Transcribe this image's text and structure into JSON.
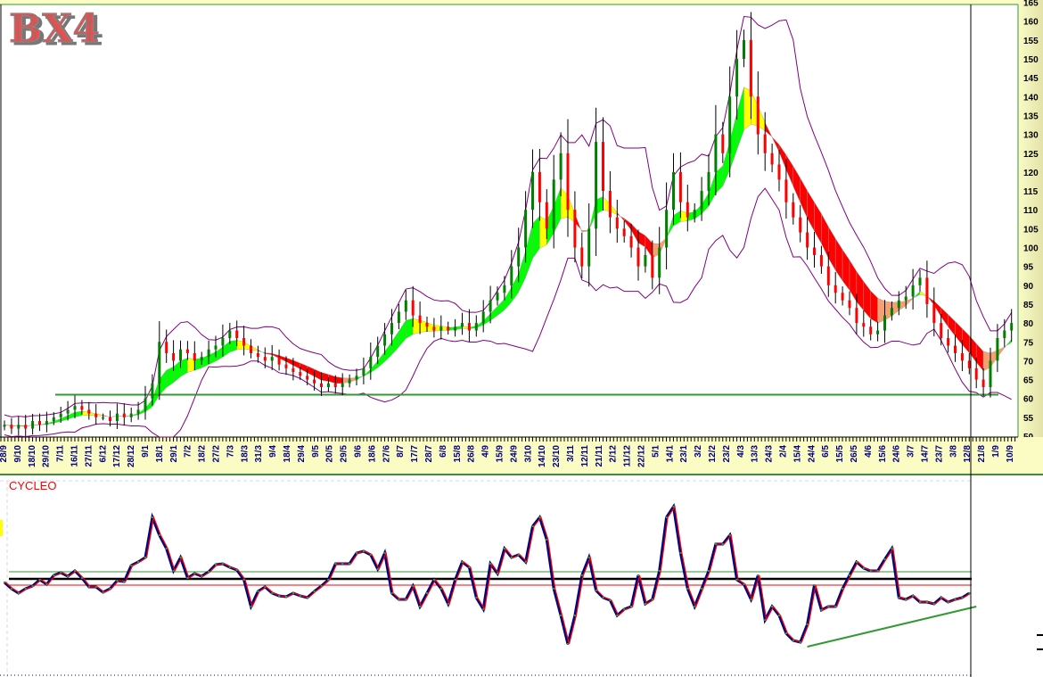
{
  "logo": {
    "text": "BX4"
  },
  "colors": {
    "up_candle": "#008000",
    "down_candle": "#ff0000",
    "wick": "#000000",
    "bollinger": "#800080",
    "ribbon_up": "#00ff00",
    "ribbon_up_slow": "#ffff00",
    "ribbon_down": "#ff0000",
    "ribbon_down_slow": "#f4a070",
    "support_line": "#339933",
    "axis_text": "#000080",
    "axis_bg": "#fbfbc4",
    "cycleo_main": "#000080",
    "cycleo_signal": "#ff0000",
    "cycleo_dots": "#339933"
  },
  "chart_data": [
    {
      "type": "candlestick",
      "title": "",
      "y_axis": {
        "position": "right",
        "ylim": [
          50,
          165
        ],
        "ticks": [
          50,
          55,
          60,
          65,
          70,
          75,
          80,
          85,
          90,
          95,
          100,
          105,
          110,
          115,
          120,
          125,
          130,
          135,
          140,
          145,
          150,
          155,
          160,
          165
        ]
      },
      "x_axis": {
        "tick_labels": [
          "28/9",
          "9/10",
          "18/10",
          "29/10",
          "7/11",
          "16/11",
          "27/11",
          "6/12",
          "17/12",
          "28/12",
          "9/1",
          "18/1",
          "29/1",
          "7/2",
          "18/2",
          "27/2",
          "7/3",
          "18/3",
          "31/3",
          "9/4",
          "18/4",
          "29/4",
          "9/5",
          "20/5",
          "29/5",
          "9/6",
          "18/6",
          "27/6",
          "8/7",
          "17/7",
          "28/7",
          "6/8",
          "15/8",
          "26/8",
          "4/9",
          "15/9",
          "24/9",
          "3/10",
          "14/10",
          "23/10",
          "3/11",
          "12/11",
          "21/11",
          "2/12",
          "11/12",
          "22/12",
          "5/1",
          "14/1",
          "23/1",
          "3/2",
          "12/2",
          "23/2",
          "4/3",
          "13/3",
          "24/3",
          "2/4",
          "15/4",
          "24/4",
          "6/5",
          "15/5",
          "26/5",
          "4/6",
          "15/6",
          "24/6",
          "3/7",
          "14/7",
          "23/7",
          "3/8",
          "12/8",
          "21/8",
          "1/9",
          "10/9"
        ]
      },
      "close": [
        53,
        52,
        53,
        52,
        54,
        53,
        54,
        55,
        56,
        57,
        58,
        57,
        56,
        55,
        55,
        54,
        56,
        55,
        56,
        57,
        60,
        64,
        75,
        72,
        70,
        73,
        72,
        70,
        71,
        73,
        74,
        76,
        78,
        76,
        74,
        72,
        71,
        70,
        71,
        69,
        68,
        67,
        66,
        65,
        64,
        63,
        64,
        63,
        64,
        65,
        66,
        68,
        71,
        74,
        77,
        80,
        83,
        86,
        82,
        80,
        79,
        78,
        79,
        78,
        79,
        80,
        78,
        80,
        83,
        86,
        88,
        90,
        95,
        100,
        110,
        120,
        112,
        105,
        118,
        125,
        110,
        100,
        95,
        105,
        128,
        115,
        108,
        105,
        103,
        100,
        95,
        98,
        92,
        100,
        110,
        120,
        112,
        108,
        110,
        115,
        120,
        130,
        125,
        140,
        150,
        155,
        140,
        130,
        125,
        122,
        118,
        112,
        108,
        104,
        100,
        98,
        95,
        90,
        88,
        86,
        84,
        80,
        79,
        77,
        78,
        82,
        84,
        86,
        87,
        90,
        92,
        85,
        80,
        76,
        74,
        72,
        70,
        68,
        65,
        63,
        70,
        76,
        78,
        80
      ],
      "overlays": [
        "bollinger-bands",
        "moving-average-ribbon"
      ],
      "support_level": 61,
      "grid": false
    },
    {
      "type": "line",
      "title": "CYCLEO",
      "series": [
        {
          "values": [
            -0.4,
            -1.1,
            -1.6,
            -1.1,
            -0.8,
            -0.1,
            -0.6,
            0.4,
            0.7,
            0.3,
            0.9,
            0.1,
            -0.9,
            -0.9,
            -1.5,
            -1.1,
            -0.2,
            -0.3,
            1.5,
            1.9,
            2.4,
            6.9,
            4.9,
            3.4,
            0.9,
            2.4,
            0.1,
            0.6,
            0.3,
            0.8,
            1.6,
            1.7,
            1.3,
            1.0,
            -0.1,
            -3.1,
            -1.4,
            -0.9,
            -1.6,
            -1.9,
            -2.0,
            -1.6,
            -1.9,
            -2.1,
            -1.4,
            -0.8,
            -0.1,
            1.7,
            1.7,
            1.7,
            2.9,
            3.1,
            2.7,
            1.1,
            2.9,
            -1.6,
            -2.3,
            -2.3,
            -0.8,
            -3.1,
            -1.6,
            -0.1,
            -1.1,
            -2.8,
            -0.1,
            1.9,
            1.3,
            -2.1,
            -3.4,
            1.7,
            0.6,
            3.4,
            2.4,
            2.7,
            1.9,
            5.9,
            6.9,
            4.4,
            -1.1,
            -4.1,
            -7.3,
            -4.1,
            0.4,
            2.4,
            -1.3,
            -2.1,
            -2.4,
            -4.1,
            -3.4,
            -3.1,
            0.4,
            -2.8,
            -2.3,
            0.9,
            6.9,
            8.1,
            2.9,
            -1.1,
            -3.1,
            -1.1,
            0.9,
            3.9,
            3.9,
            4.9,
            -0.1,
            -0.6,
            -2.3,
            0.4,
            -4.6,
            -3.1,
            -4.1,
            -6.1,
            -6.9,
            -7.1,
            -5.1,
            -0.7,
            -3.5,
            -3.1,
            -3.1,
            -1.1,
            0.4,
            1.9,
            1.2,
            0.9,
            0.9,
            2.2,
            3.4,
            -2.1,
            -2.3,
            -1.9,
            -2.6,
            -2.6,
            -2.8,
            -2.1,
            -2.6,
            -2.3,
            -2.1,
            -1.6
          ]
        }
      ],
      "levels": {
        "upper": 0.8,
        "zero": 0,
        "lower": -0.7
      },
      "trendline": {
        "from": [
          114,
          -7.6
        ],
        "to": [
          138,
          -3.1
        ]
      },
      "ylim": [
        -9,
        10
      ]
    }
  ]
}
